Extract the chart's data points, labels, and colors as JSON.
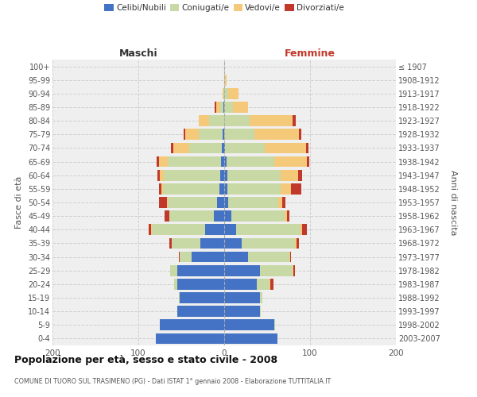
{
  "age_groups": [
    "0-4",
    "5-9",
    "10-14",
    "15-19",
    "20-24",
    "25-29",
    "30-34",
    "35-39",
    "40-44",
    "45-49",
    "50-54",
    "55-59",
    "60-64",
    "65-69",
    "70-74",
    "75-79",
    "80-84",
    "85-89",
    "90-94",
    "95-99",
    "100+"
  ],
  "birth_years": [
    "2003-2007",
    "1998-2002",
    "1993-1997",
    "1988-1992",
    "1983-1987",
    "1978-1982",
    "1973-1977",
    "1968-1972",
    "1963-1967",
    "1958-1962",
    "1953-1957",
    "1948-1952",
    "1943-1947",
    "1938-1942",
    "1933-1937",
    "1928-1932",
    "1923-1927",
    "1918-1922",
    "1913-1917",
    "1908-1912",
    "≤ 1907"
  ],
  "maschi_celibi": [
    80,
    75,
    55,
    52,
    55,
    55,
    38,
    28,
    22,
    12,
    8,
    6,
    5,
    4,
    3,
    2,
    0,
    1,
    0,
    0,
    0
  ],
  "maschi_coniugati": [
    0,
    0,
    0,
    1,
    3,
    8,
    14,
    33,
    62,
    52,
    58,
    65,
    65,
    62,
    38,
    28,
    18,
    4,
    1,
    0,
    0
  ],
  "maschi_vedovi": [
    0,
    0,
    0,
    0,
    0,
    0,
    0,
    0,
    1,
    0,
    1,
    2,
    5,
    10,
    18,
    15,
    12,
    4,
    1,
    0,
    0
  ],
  "maschi_divorziati": [
    0,
    0,
    0,
    0,
    0,
    0,
    1,
    3,
    3,
    5,
    9,
    3,
    3,
    3,
    3,
    2,
    0,
    2,
    0,
    0,
    0
  ],
  "femmine_celibi": [
    62,
    58,
    42,
    42,
    38,
    42,
    28,
    20,
    14,
    8,
    5,
    4,
    4,
    3,
    1,
    0,
    0,
    0,
    0,
    0,
    0
  ],
  "femmine_coniugati": [
    0,
    1,
    1,
    2,
    15,
    38,
    48,
    62,
    75,
    62,
    58,
    62,
    62,
    55,
    46,
    35,
    30,
    10,
    5,
    1,
    0
  ],
  "femmine_vedovi": [
    0,
    0,
    0,
    0,
    1,
    1,
    1,
    2,
    2,
    3,
    5,
    12,
    20,
    38,
    48,
    52,
    50,
    18,
    12,
    2,
    0
  ],
  "femmine_divorziati": [
    0,
    0,
    0,
    0,
    3,
    1,
    1,
    3,
    5,
    3,
    3,
    12,
    5,
    3,
    3,
    3,
    3,
    0,
    0,
    0,
    0
  ],
  "color_celibi": "#4472c4",
  "color_coniugati": "#c8d9a5",
  "color_vedovi": "#f5c97a",
  "color_divorziati": "#c0392b",
  "title": "Popolazione per età, sesso e stato civile - 2008",
  "subtitle": "COMUNE DI TUORO SUL TRASIMENO (PG) - Dati ISTAT 1° gennaio 2008 - Elaborazione TUTTITALIA.IT",
  "ylabel_left": "Fasce di età",
  "ylabel_right": "Anni di nascita",
  "xlabel_left": "Maschi",
  "xlabel_right": "Femmine",
  "xlim": 200,
  "bg_color": "#efefef",
  "grid_color": "#d0d0d0"
}
